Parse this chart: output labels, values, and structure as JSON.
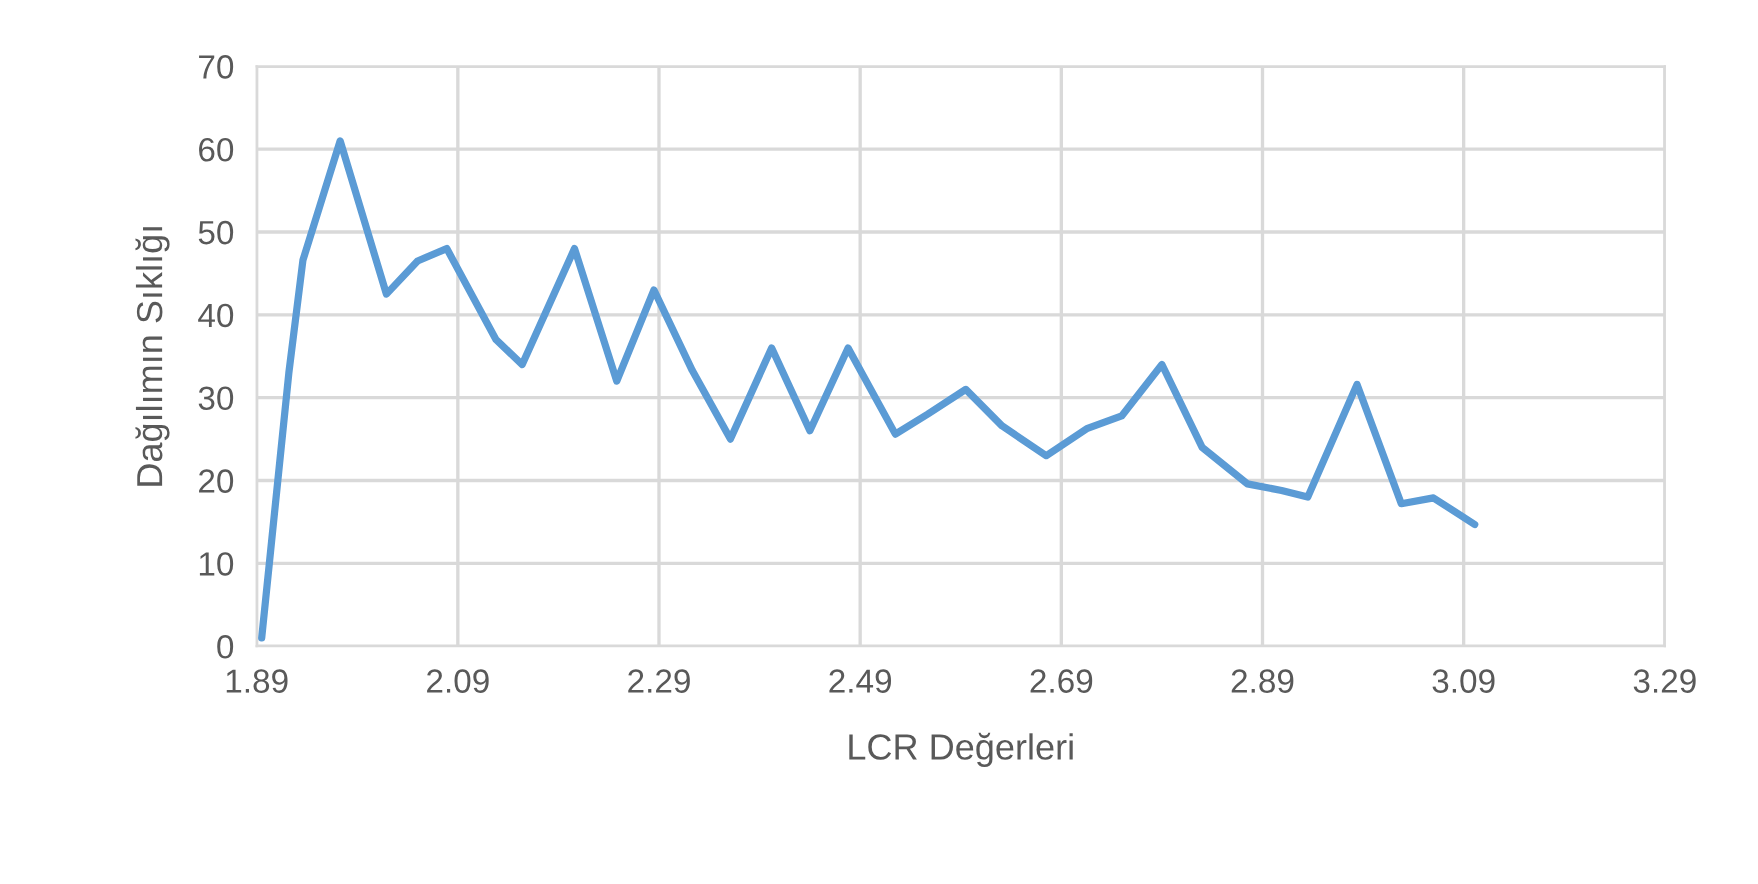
{
  "chart_data": {
    "type": "line",
    "xlabel": "LCR Değerleri",
    "ylabel": "Dağılımın Sıklığı",
    "xlim": [
      1.89,
      3.29
    ],
    "xticks": [
      1.89,
      2.09,
      2.29,
      2.49,
      2.69,
      2.89,
      3.09,
      3.29
    ],
    "ylim": [
      0,
      70
    ],
    "yticks": [
      0,
      10,
      20,
      30,
      40,
      50,
      60,
      70
    ],
    "grid": true,
    "legend": false,
    "series": [
      {
        "color": "#5b9bd5",
        "x": [
          1.895,
          1.922,
          1.936,
          1.973,
          2.019,
          2.05,
          2.079,
          2.128,
          2.154,
          2.206,
          2.248,
          2.285,
          2.323,
          2.361,
          2.402,
          2.44,
          2.478,
          2.525,
          2.557,
          2.595,
          2.631,
          2.675,
          2.716,
          2.75,
          2.79,
          2.83,
          2.875,
          2.909,
          2.935,
          2.984,
          3.028,
          3.06,
          3.101
        ],
        "values": [
          1,
          33,
          46.6,
          61,
          42.5,
          46.5,
          48,
          37,
          34,
          48,
          32,
          43,
          33.3,
          25,
          36,
          26,
          36,
          25.6,
          28,
          31,
          26.6,
          23,
          26.3,
          27.8,
          34,
          24,
          19.6,
          18.8,
          18,
          31.6,
          17.2,
          17.9,
          14.7
        ]
      }
    ]
  }
}
